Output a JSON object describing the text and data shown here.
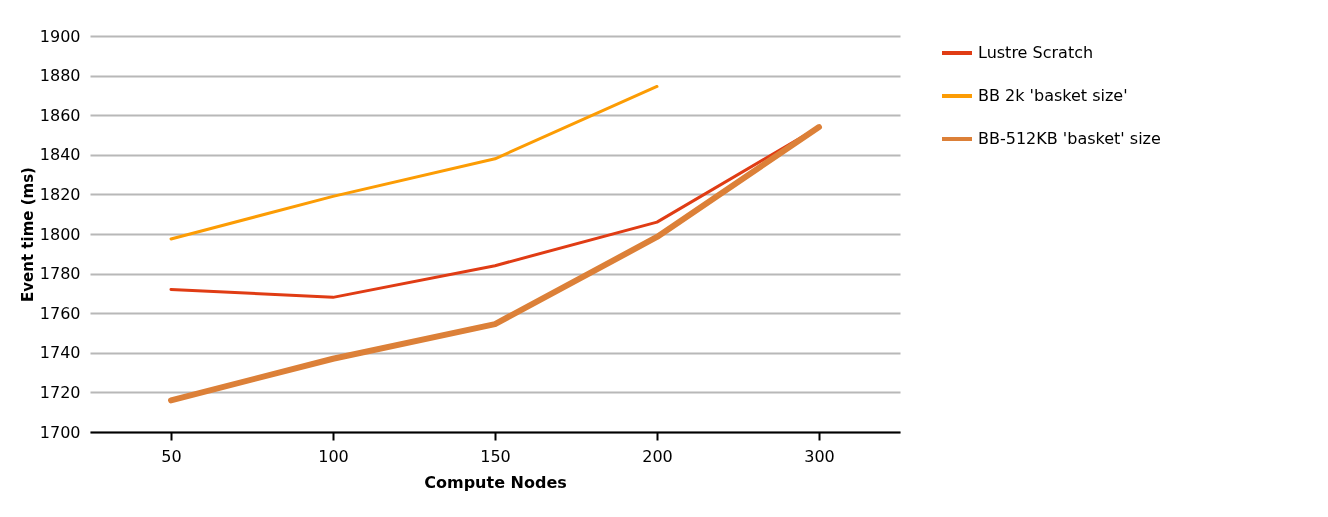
{
  "chart_data": {
    "type": "line",
    "xlabel": "Compute Nodes",
    "ylabel": "Event time (ms)",
    "categories": [
      "50",
      "100",
      "150",
      "200",
      "300"
    ],
    "series": [
      {
        "name": "Lustre Scratch",
        "color": "#e03c14",
        "values": [
          1772,
          1768,
          1784,
          1806,
          1854
        ]
      },
      {
        "name": "BB 2k 'basket size'",
        "color": "#fc9c04",
        "values": [
          1797.5,
          1819,
          1838,
          1874.5,
          null
        ]
      },
      {
        "name": "BB-512KB 'basket' size",
        "color": "#dc8038",
        "values": [
          1716,
          1737,
          1754.5,
          1798.5,
          1854
        ]
      }
    ],
    "ylim": [
      1700,
      1900
    ],
    "yticks": [
      1700,
      1720,
      1740,
      1760,
      1780,
      1800,
      1820,
      1840,
      1860,
      1880,
      1900
    ],
    "grid": "y",
    "legend": "right",
    "marker": "none",
    "line_style": "solid"
  }
}
